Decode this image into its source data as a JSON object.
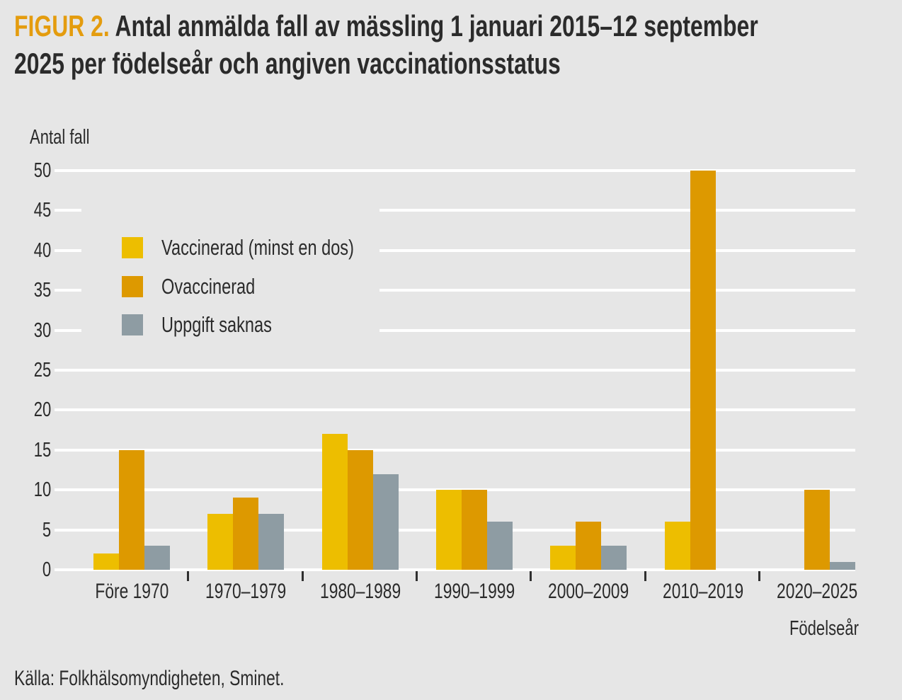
{
  "heading": {
    "figure_label": "FIGUR 2.",
    "title_line1": "Antal anmälda fall av mässling 1 januari 2015–12 september",
    "title_line2": "2025 per födelseår och angiven vaccinationsstatus"
  },
  "chart_data": {
    "type": "bar",
    "title": "Antal anmälda fall av mässling 1 januari 2015–12 september 2025 per födelseår och angiven vaccinationsstatus",
    "ylabel": "Antal fall",
    "xlabel": "Födelseår",
    "ylim": [
      0,
      50
    ],
    "yticks": [
      0,
      5,
      10,
      15,
      20,
      25,
      30,
      35,
      40,
      45,
      50
    ],
    "grid": true,
    "legend_position": "inside-upper-left",
    "categories": [
      "Före 1970",
      "1970–1979",
      "1980–1989",
      "1990–1999",
      "2000–2009",
      "2010–2019",
      "2020–2025"
    ],
    "series": [
      {
        "name": "Vaccinerad (minst en dos)",
        "color": "#edbe00",
        "values": [
          2,
          7,
          17,
          10,
          3,
          6,
          0
        ]
      },
      {
        "name": "Ovaccinerad",
        "color": "#dd9900",
        "values": [
          15,
          9,
          15,
          10,
          6,
          50,
          10
        ]
      },
      {
        "name": "Uppgift saknas",
        "color": "#8e9ca3",
        "values": [
          3,
          7,
          12,
          6,
          3,
          0,
          1
        ]
      }
    ]
  },
  "source_note": "Källa: Folkhälsomyndigheten, Sminet.",
  "colors": {
    "background": "#e6e6e6",
    "gridline": "#ffffff",
    "text": "#2b2b2b",
    "accent": "#e49c0e"
  }
}
